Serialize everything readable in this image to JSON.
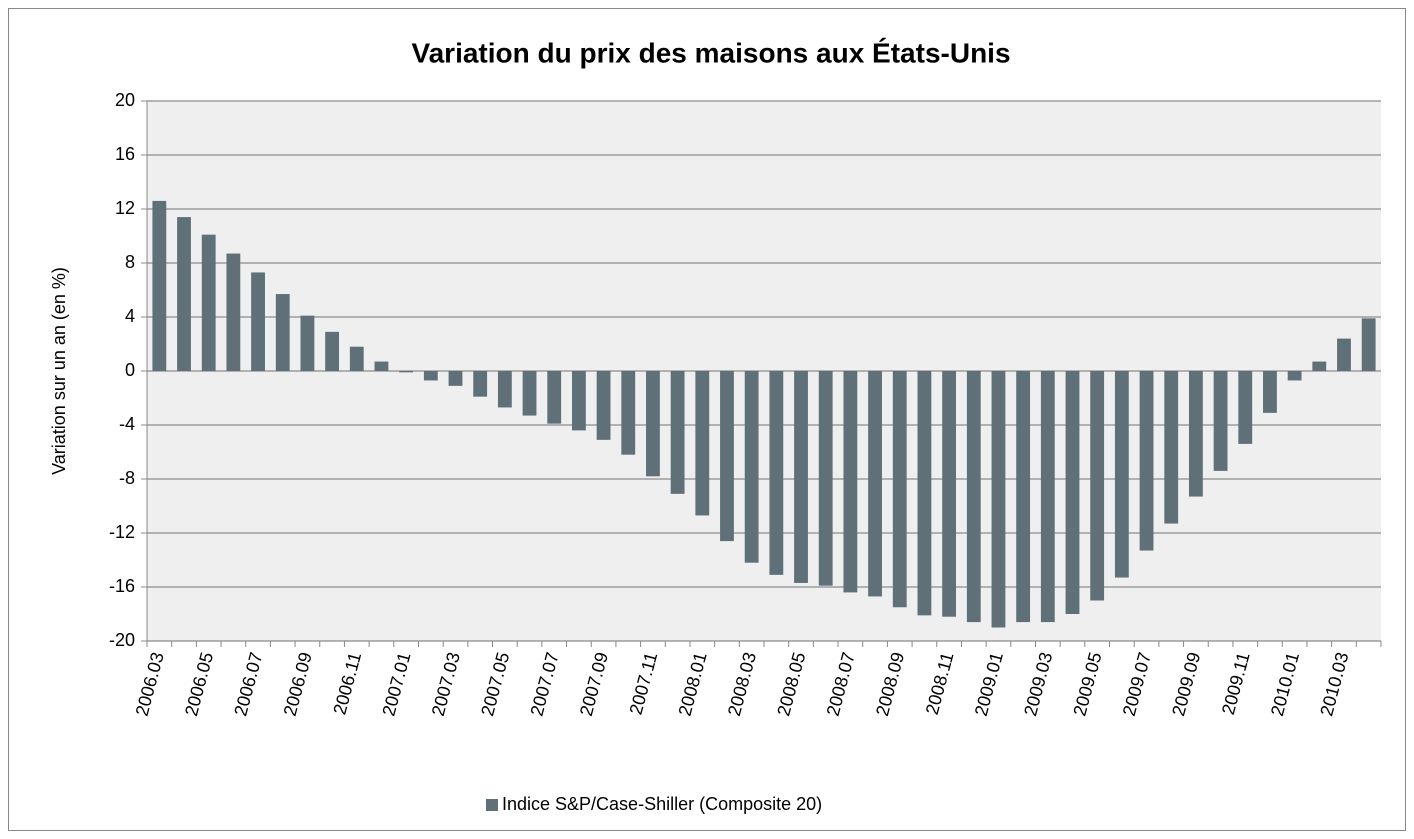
{
  "chart_data": {
    "type": "bar",
    "title": "Variation du prix des maisons aux États-Unis",
    "y_label": "Variation sur un an (en %)",
    "categories": [
      "2006.03",
      null,
      "2006.05",
      null,
      "2006.07",
      null,
      "2006.09",
      null,
      "2006.11",
      null,
      "2007.01",
      null,
      "2007.03",
      null,
      "2007.05",
      null,
      "2007.07",
      null,
      "2007.09",
      null,
      "2007.11",
      null,
      "2008.01",
      null,
      "2008.03",
      null,
      "2008.05",
      null,
      "2008.07",
      null,
      "2008.09",
      null,
      "2008.11",
      null,
      "2009.01",
      null,
      "2009.03",
      null,
      "2009.05",
      null,
      "2009.07",
      null,
      "2009.09",
      null,
      "2009.11",
      null,
      "2010.01",
      null,
      "2010.03",
      null
    ],
    "series": [
      {
        "name": "Indice S&P/Case-Shiller (Composite 20)",
        "color": "#5f7079",
        "values": [
          12.6,
          11.4,
          10.1,
          8.7,
          7.3,
          5.7,
          4.1,
          2.9,
          1.8,
          0.7,
          -0.1,
          -0.7,
          -1.1,
          -1.9,
          -2.7,
          -3.3,
          -3.9,
          -4.4,
          -5.1,
          -6.2,
          -7.8,
          -9.1,
          -10.7,
          -12.6,
          -14.2,
          -15.1,
          -15.7,
          -15.9,
          -16.4,
          -16.7,
          -17.5,
          -18.1,
          -18.2,
          -18.6,
          -19.0,
          -18.6,
          -18.6,
          -18.0,
          -17.0,
          -15.3,
          -13.3,
          -11.3,
          -9.3,
          -7.4,
          -5.4,
          -3.1,
          -0.7,
          0.7,
          2.4,
          3.9
        ]
      }
    ],
    "ylim": [
      -20,
      20
    ],
    "yticks": [
      -20,
      -16,
      -12,
      -8,
      -4,
      0,
      4,
      8,
      12,
      16,
      20
    ],
    "grid": true,
    "legend": "bottom"
  }
}
